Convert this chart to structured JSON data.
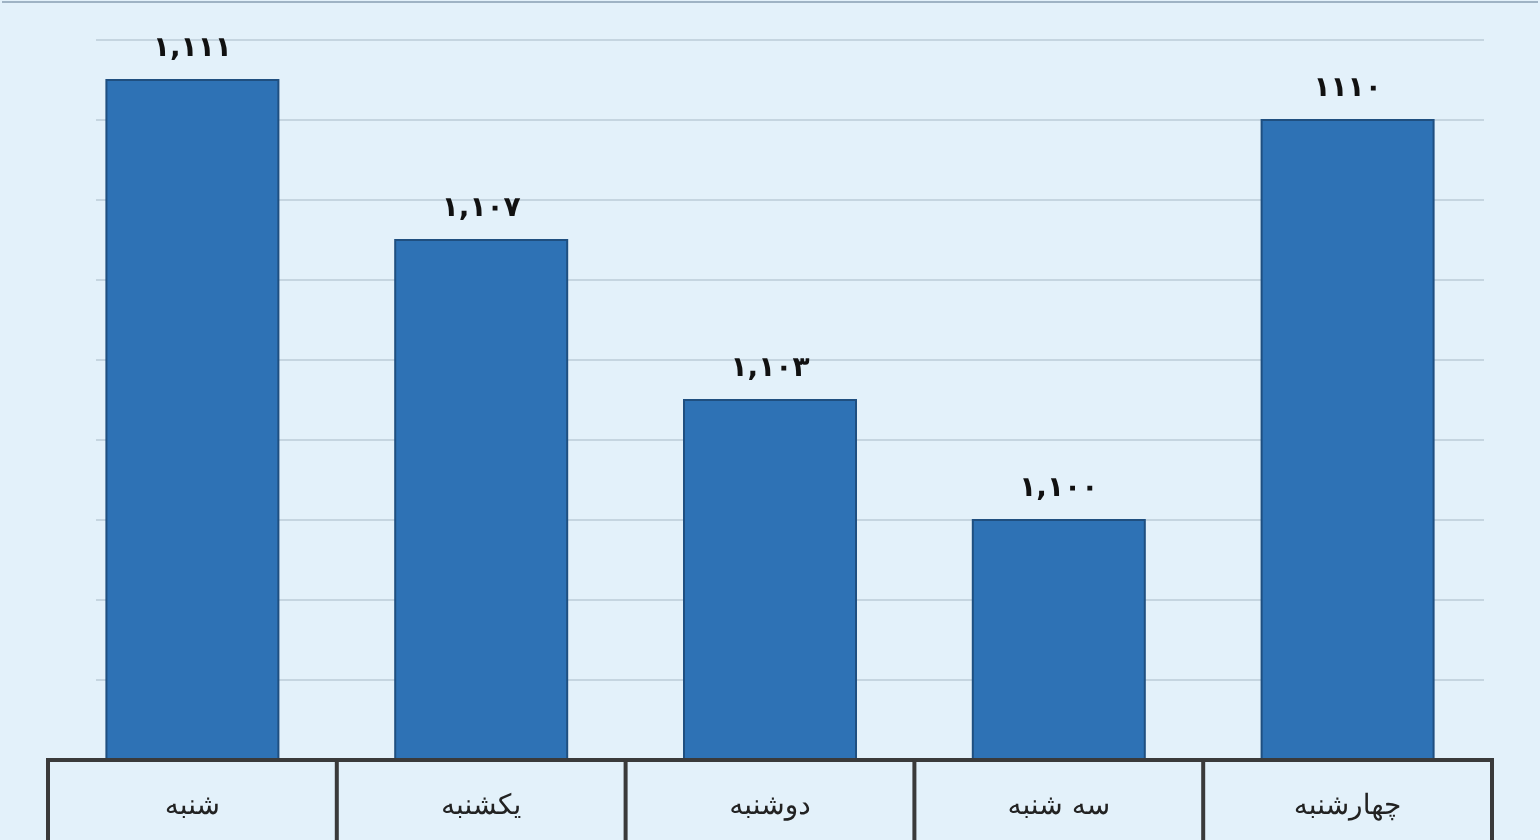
{
  "chart_data": {
    "type": "bar",
    "categories": [
      "شنبه",
      "یکشنبه",
      "دوشنبه",
      "سه شنبه",
      "چهارشنبه"
    ],
    "values": [
      1111,
      1107,
      1103,
      1100,
      1110
    ],
    "value_labels": [
      "۱,۱۱۱",
      "۱,۱۰۷",
      "۱,۱۰۳",
      "۱,۱۰۰",
      "۱۱۱۰"
    ],
    "color": "#2e72b5",
    "ylim": [
      1094,
      1113
    ],
    "yticks": [
      {
        "value": 1096,
        "label": null
      },
      {
        "value": 1098,
        "label": null
      },
      {
        "value": 1100,
        "label": null
      },
      {
        "value": 1102,
        "label": null
      },
      {
        "value": 1104,
        "label": null
      },
      {
        "value": 1106,
        "label": null
      },
      {
        "value": 1108,
        "label": null
      },
      {
        "value": 1110,
        "label": null
      },
      {
        "value": 1112,
        "label": null
      }
    ],
    "grid": "y",
    "tick_labels": "x"
  }
}
